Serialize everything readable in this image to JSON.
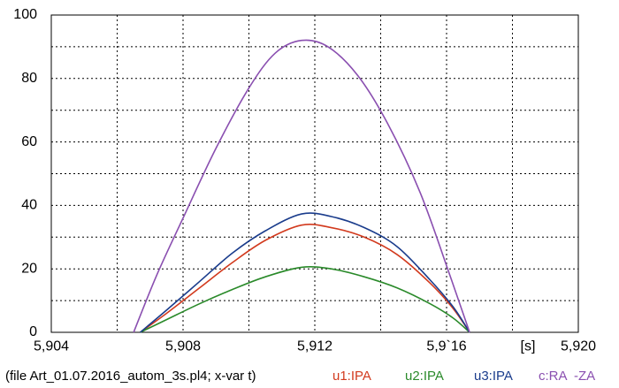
{
  "chart_data": {
    "type": "line",
    "title": "",
    "xlabel": "",
    "ylabel": "",
    "x_unit_label": "[s]",
    "xlim": [
      5.904,
      5.92
    ],
    "ylim": [
      0,
      100
    ],
    "grid": true,
    "x_tick_labels": [
      {
        "value": 5.904,
        "label": "5,904"
      },
      {
        "value": 5.908,
        "label": "5,908"
      },
      {
        "value": 5.912,
        "label": "5,912"
      },
      {
        "value": 5.916,
        "label": "5,9`16"
      },
      {
        "value": 5.92,
        "label": "5,920"
      }
    ],
    "y_tick_labels": [
      {
        "value": 0,
        "label": "0"
      },
      {
        "value": 20,
        "label": "20"
      },
      {
        "value": 40,
        "label": "40"
      },
      {
        "value": 60,
        "label": "60"
      },
      {
        "value": 80,
        "label": "80"
      },
      {
        "value": 100,
        "label": "100"
      }
    ],
    "series": [
      {
        "name": "u1:IPA",
        "color": "#d23a1e",
        "x": [
          5.9067,
          5.9075,
          5.9085,
          5.9095,
          5.9105,
          5.9116,
          5.9125,
          5.9135,
          5.9145,
          5.9155,
          5.9162,
          5.9167
        ],
        "y": [
          0,
          6,
          14,
          22,
          29,
          33.8,
          33,
          30,
          24.5,
          15.5,
          7.5,
          0
        ]
      },
      {
        "name": "u2:IPA",
        "color": "#2a8a2a",
        "x": [
          5.9067,
          5.9075,
          5.9085,
          5.9095,
          5.9105,
          5.9116,
          5.9125,
          5.9135,
          5.9145,
          5.9155,
          5.9162,
          5.9167
        ],
        "y": [
          0,
          4,
          9,
          13.5,
          17.5,
          20.5,
          20,
          17.5,
          14,
          9,
          4.5,
          0
        ]
      },
      {
        "name": "u3:IPA",
        "color": "#1a3c8c",
        "x": [
          5.9067,
          5.9075,
          5.9085,
          5.9095,
          5.9105,
          5.9116,
          5.9125,
          5.9135,
          5.9145,
          5.9155,
          5.9162,
          5.9167
        ],
        "y": [
          0,
          7,
          16,
          25,
          32,
          37.3,
          36.5,
          33,
          27,
          16.5,
          8,
          0
        ]
      },
      {
        "name": "c:RA  -ZA",
        "color": "#8a4fb0",
        "x": [
          5.9065,
          5.9072,
          5.908,
          5.909,
          5.91,
          5.9108,
          5.9116,
          5.9124,
          5.9133,
          5.9142,
          5.9152,
          5.9161,
          5.9167
        ],
        "y": [
          0,
          18,
          36,
          58,
          77,
          88,
          92,
          90,
          81,
          66,
          44,
          18,
          0
        ]
      }
    ]
  },
  "footer": {
    "file_info": "(file Art_01.07.2016_autom_3s.pl4; x-var t)",
    "legend": [
      {
        "label": "u1:IPA",
        "color": "#d23a1e"
      },
      {
        "label": "u2:IPA",
        "color": "#2a8a2a"
      },
      {
        "label": "u3:IPA",
        "color": "#1a3c8c"
      },
      {
        "label": "c:RA  -ZA",
        "color": "#8a4fb0"
      }
    ]
  }
}
